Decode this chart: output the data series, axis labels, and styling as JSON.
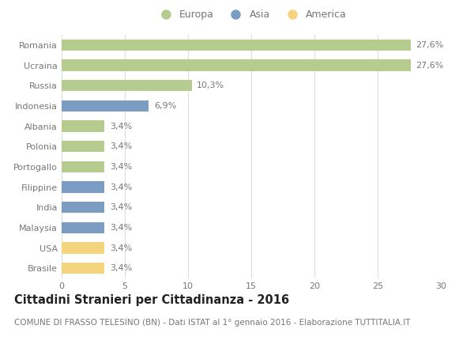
{
  "categories": [
    "Romania",
    "Ucraina",
    "Russia",
    "Indonesia",
    "Albania",
    "Polonia",
    "Portogallo",
    "Filippine",
    "India",
    "Malaysia",
    "USA",
    "Brasile"
  ],
  "values": [
    27.6,
    27.6,
    10.3,
    6.9,
    3.4,
    3.4,
    3.4,
    3.4,
    3.4,
    3.4,
    3.4,
    3.4
  ],
  "labels": [
    "27,6%",
    "27,6%",
    "10,3%",
    "6,9%",
    "3,4%",
    "3,4%",
    "3,4%",
    "3,4%",
    "3,4%",
    "3,4%",
    "3,4%",
    "3,4%"
  ],
  "continents": [
    "Europa",
    "Europa",
    "Europa",
    "Asia",
    "Europa",
    "Europa",
    "Europa",
    "Asia",
    "Asia",
    "Asia",
    "America",
    "America"
  ],
  "colors": {
    "Europa": "#b5cc8e",
    "Asia": "#7b9dc4",
    "America": "#f5d47e"
  },
  "legend_entries": [
    "Europa",
    "Asia",
    "America"
  ],
  "legend_colors": [
    "#b5cc8e",
    "#7b9dc4",
    "#f5d47e"
  ],
  "xlim": [
    0,
    30
  ],
  "xticks": [
    0,
    5,
    10,
    15,
    20,
    25,
    30
  ],
  "title": "Cittadini Stranieri per Cittadinanza - 2016",
  "subtitle": "COMUNE DI FRASSO TELESINO (BN) - Dati ISTAT al 1° gennaio 2016 - Elaborazione TUTTITALIA.IT",
  "title_fontsize": 10.5,
  "subtitle_fontsize": 7.5,
  "label_fontsize": 8,
  "tick_fontsize": 8,
  "bar_height": 0.55,
  "background_color": "#ffffff",
  "grid_color": "#dddddd",
  "text_color": "#777777",
  "title_color": "#222222"
}
